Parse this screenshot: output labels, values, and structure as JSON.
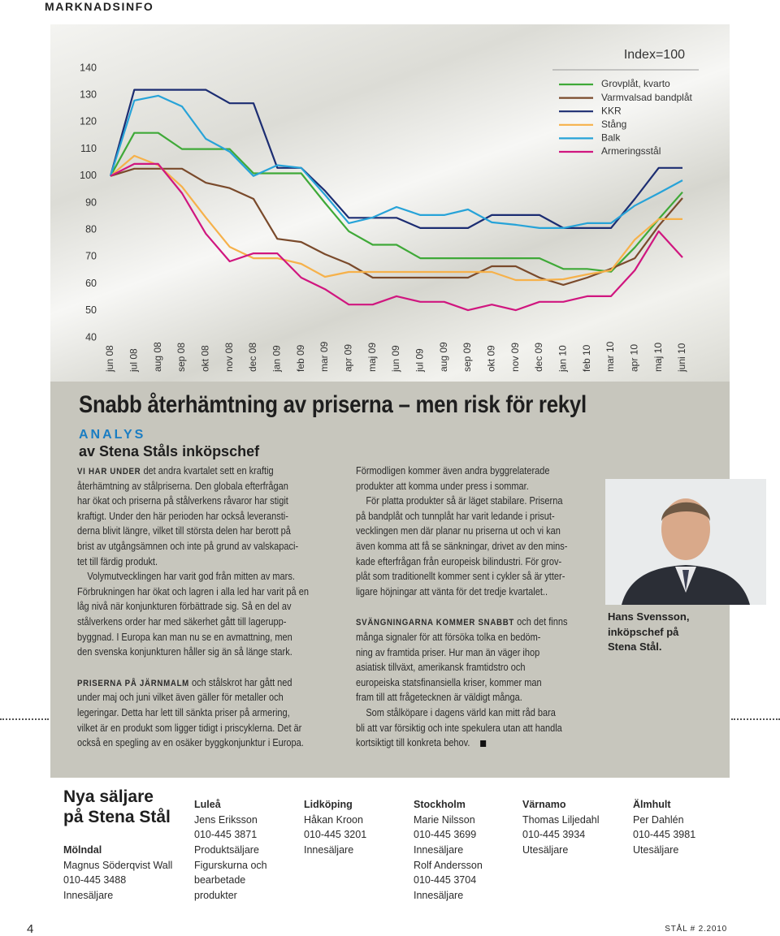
{
  "header": {
    "section": "MARKNADSINFO"
  },
  "chart_data": {
    "type": "line",
    "annotation": "Index=100",
    "categories": [
      "jun 08",
      "jul 08",
      "aug 08",
      "sep 08",
      "okt 08",
      "nov 08",
      "dec 08",
      "jan 09",
      "feb 09",
      "mar 09",
      "apr 09",
      "maj 09",
      "jun 09",
      "jul 09",
      "aug 09",
      "sep 09",
      "okt 09",
      "nov 09",
      "dec 09",
      "jan 10",
      "feb 10",
      "mar 10",
      "apr 10",
      "maj 10",
      "juni 10"
    ],
    "series": [
      {
        "name": "Grovplåt, kvarto",
        "color": "#3fa938",
        "values": [
          100,
          116,
          116,
          110,
          110,
          110,
          101,
          101,
          101,
          90,
          79.5,
          74.5,
          74.5,
          69.5,
          69.5,
          69.5,
          69.5,
          69.5,
          69.5,
          65.5,
          65.5,
          64.5,
          73.5,
          84,
          94
        ]
      },
      {
        "name": "Varmvalsad bandplåt",
        "color": "#7a4a2b",
        "values": [
          100,
          102.7,
          102.7,
          102.7,
          97.5,
          95.5,
          91.5,
          76.7,
          75.5,
          71,
          67.4,
          62.3,
          62.3,
          62.3,
          62.3,
          62.3,
          66.5,
          66.5,
          62.3,
          59.6,
          62.3,
          65.6,
          69.5,
          81.5,
          91.8
        ]
      },
      {
        "name": "KKR",
        "color": "#1c2d72",
        "values": [
          100,
          132,
          132,
          132,
          132,
          127,
          127,
          103,
          103,
          94.5,
          84.5,
          84.5,
          84.5,
          80.7,
          80.7,
          80.7,
          85.5,
          85.5,
          85.5,
          80.7,
          80.7,
          80.7,
          91.5,
          103,
          103
        ]
      },
      {
        "name": "Stång",
        "color": "#f6b14a",
        "values": [
          100,
          107.5,
          104,
          96,
          84.6,
          73.7,
          69.5,
          69.5,
          67.4,
          62.6,
          64.4,
          64.4,
          64.4,
          64.4,
          64.4,
          64.4,
          64.4,
          61.4,
          61.4,
          61.7,
          63.5,
          65,
          76.4,
          84,
          84
        ]
      },
      {
        "name": "Balk",
        "color": "#27a3d8",
        "values": [
          100,
          128,
          129.8,
          125.8,
          113.8,
          109,
          100,
          104,
          103,
          93,
          82.5,
          84.6,
          88.5,
          85.5,
          85.5,
          87.6,
          82.8,
          81.9,
          80.7,
          80.7,
          82.5,
          82.5,
          89,
          93.6,
          98.4
        ]
      },
      {
        "name": "Armeringsstål",
        "color": "#d0167f",
        "values": [
          100,
          104.5,
          104.5,
          93.6,
          78.6,
          68.3,
          71.3,
          71.3,
          62.3,
          58,
          52.3,
          52.3,
          55.4,
          53.3,
          53.3,
          50.2,
          52.3,
          50.2,
          53.3,
          53.3,
          55.4,
          55.4,
          65,
          79.5,
          69.8
        ]
      }
    ],
    "ylim": [
      40,
      140
    ],
    "yticks": [
      40,
      50,
      60,
      70,
      80,
      90,
      100,
      110,
      120,
      130,
      140
    ],
    "grid": false,
    "legend": "top-right"
  },
  "article": {
    "title": "Snabb återhämtning av priserna – men risk för rekyl",
    "kicker": "ANALYS",
    "byline": "av Stena Ståls inköpschef",
    "columns": [
      {
        "sections": [
          {
            "lead": "VI HAR UNDER",
            "paragraphs": [
              [
                "det andra kvartalet sett en kraftig",
                "återhämtning av stålpriserna. Den globala efterfrågan",
                "har ökat och priserna på stålverkens råvaror har stigit",
                "kraftigt. Under den här perioden har också leveransti-",
                "derna blivit längre, vilket till största delen har berott på",
                "brist av utgångsämnen och inte på grund av valskapaci-",
                "tet till färdig produkt."
              ],
              [
                "Volymutvecklingen har varit god från mitten av mars.",
                "Förbrukningen har ökat och lagren i alla led har varit på en",
                "låg nivå när konjunkturen förbättrade sig. Så en del av",
                "stålverkens order har med säkerhet gått till lagerupp-",
                "byggnad. I Europa kan man nu se en avmattning, men",
                "den svenska konjunkturen håller sig än så länge stark."
              ]
            ]
          },
          {
            "lead": "PRISERNA PÅ JÄRNMALM",
            "paragraphs": [
              [
                "och stålskrot har gått ned",
                "under maj och juni vilket även gäller för metaller och",
                "legeringar. Detta har lett till sänkta priser på armering,",
                "vilket är en produkt som ligger tidigt i priscyklerna. Det är",
                "också en spegling av en osäker byggkonjunktur i Europa."
              ]
            ]
          }
        ]
      },
      {
        "sections": [
          {
            "paragraphs": [
              [
                "Förmodligen kommer även andra byggrelaterade",
                "produkter att komma under press i sommar."
              ],
              [
                "För platta produkter så är läget stabilare. Priserna",
                "på bandplåt och tunnplåt har varit ledande i prisut-",
                "vecklingen men där planar nu priserna ut och vi kan",
                "även komma att få se sänkningar, drivet av den mins-",
                "kade efterfrågan från europeisk bilindustri. För grov-",
                "plåt som traditionellt kommer sent i cykler så är ytter-",
                "ligare höjningar att vänta för det tredje kvartalet.."
              ]
            ]
          },
          {
            "lead": "SVÄNGNINGARNA KOMMER SNABBT",
            "paragraphs": [
              [
                "och det finns",
                "många signaler för att försöka tolka en bedöm-",
                "ning av framtida priser. Hur man än väger ihop",
                "asiatisk tillväxt, amerikansk framtidstro och",
                "europeiska statsfinansiella kriser, kommer man",
                "fram till att frågetecknen är väldigt många."
              ],
              [
                "Som stålköpare i dagens värld kan mitt råd bara",
                "bli att var försiktig och inte spekulera utan att handla",
                "kortsiktigt till konkreta behov."
              ]
            ]
          }
        ]
      }
    ],
    "photo_caption": [
      "Hans Svensson,",
      "inköpschef på",
      "Stena Stål."
    ]
  },
  "contacts": {
    "title": [
      "Nya säljare",
      "på Stena Stål"
    ],
    "groups": [
      {
        "city": "Mölndal",
        "lines": [
          "Magnus Söderqvist Wall",
          "010-445 3488",
          "Innesäljare"
        ]
      },
      {
        "city": "Luleå",
        "lines": [
          "Jens Eriksson",
          "010-445 3871",
          "Produktsäljare",
          "Figurskurna och",
          "bearbetade",
          "produkter"
        ]
      },
      {
        "city": "Lidköping",
        "lines": [
          "Håkan Kroon",
          "010-445 3201",
          "Innesäljare"
        ]
      },
      {
        "city": "Stockholm",
        "lines": [
          "Marie Nilsson",
          "010-445 3699",
          "Innesäljare",
          "Rolf Andersson",
          "010-445 3704",
          "Innesäljare"
        ]
      },
      {
        "city": "Värnamo",
        "lines": [
          "Thomas Liljedahl",
          "010-445 3934",
          "Utesäljare"
        ]
      },
      {
        "city": "Älmhult",
        "lines": [
          "Per Dahlén",
          "010-445 3981",
          "Utesäljare"
        ]
      }
    ]
  },
  "footer": {
    "page": "4",
    "issue": "STÅL # 2.2010"
  }
}
